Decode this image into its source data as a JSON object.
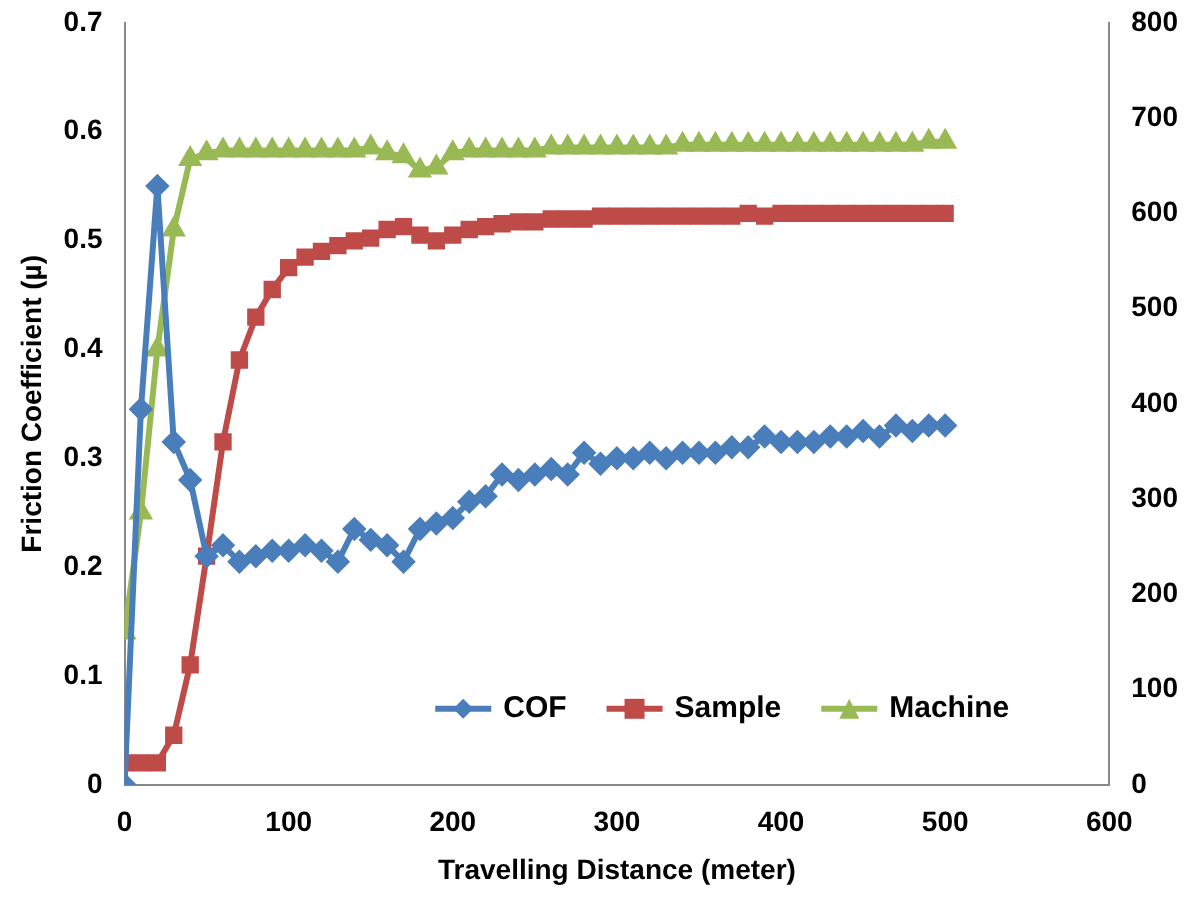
{
  "chart_data": {
    "type": "line",
    "xlabel": "Travelling Distance (meter)",
    "ylabel": "Friction Coefficient (µ)",
    "x": [
      0,
      10,
      20,
      30,
      40,
      50,
      60,
      70,
      80,
      90,
      100,
      110,
      120,
      130,
      140,
      150,
      160,
      170,
      180,
      190,
      200,
      210,
      220,
      230,
      240,
      250,
      260,
      270,
      280,
      290,
      300,
      310,
      320,
      330,
      340,
      350,
      360,
      370,
      380,
      390,
      400,
      410,
      420,
      430,
      440,
      450,
      460,
      470,
      480,
      490,
      500
    ],
    "xlim": [
      0,
      600
    ],
    "xticks": [
      0,
      100,
      200,
      300,
      400,
      500,
      600
    ],
    "ylim": [
      0,
      0.7
    ],
    "yticks": [
      0,
      0.1,
      0.2,
      0.3,
      0.4,
      0.5,
      0.6,
      0.7
    ],
    "y2lim": [
      0,
      800
    ],
    "y2ticks": [
      0,
      100,
      200,
      300,
      400,
      500,
      600,
      700,
      800
    ],
    "grid": false,
    "legend": "bottom right",
    "line_style": "solid",
    "series": [
      {
        "name": "COF",
        "color": "#4a7ebb",
        "marker": "diamond",
        "values": [
          0,
          0.345,
          0.55,
          0.315,
          0.28,
          0.21,
          0.22,
          0.205,
          0.21,
          0.215,
          0.215,
          0.22,
          0.215,
          0.205,
          0.235,
          0.225,
          0.22,
          0.205,
          0.235,
          0.24,
          0.245,
          0.26,
          0.265,
          0.285,
          0.28,
          0.285,
          0.29,
          0.285,
          0.305,
          0.295,
          0.3,
          0.3,
          0.305,
          0.3,
          0.305,
          0.305,
          0.305,
          0.31,
          0.31,
          0.32,
          0.315,
          0.315,
          0.315,
          0.32,
          0.32,
          0.325,
          0.32,
          0.33,
          0.325,
          0.33,
          0.33
        ]
      },
      {
        "name": "Sample",
        "color": "#be4b48",
        "marker": "square",
        "axis": "y2",
        "values": [
          23,
          23,
          23,
          52,
          126,
          240,
          360,
          446,
          491,
          520,
          543,
          554,
          560,
          566,
          571,
          574,
          583,
          586,
          577,
          571,
          577,
          583,
          586,
          589,
          591,
          591,
          594,
          594,
          594,
          597,
          597,
          597,
          597,
          597,
          597,
          597,
          597,
          597,
          600,
          597,
          600,
          600,
          600,
          600,
          600,
          600,
          600,
          600,
          600,
          600,
          600
        ]
      },
      {
        "name": "Machine",
        "color": "#98b954",
        "marker": "triangle",
        "axis": "y2",
        "values": [
          160,
          286,
          457,
          583,
          657,
          663,
          666,
          666,
          666,
          666,
          666,
          666,
          666,
          666,
          666,
          669,
          663,
          660,
          645,
          648,
          663,
          666,
          666,
          666,
          666,
          666,
          669,
          669,
          669,
          669,
          669,
          669,
          669,
          669,
          672,
          672,
          672,
          672,
          672,
          672,
          672,
          672,
          672,
          672,
          672,
          672,
          672,
          672,
          672,
          675,
          675
        ]
      }
    ]
  }
}
